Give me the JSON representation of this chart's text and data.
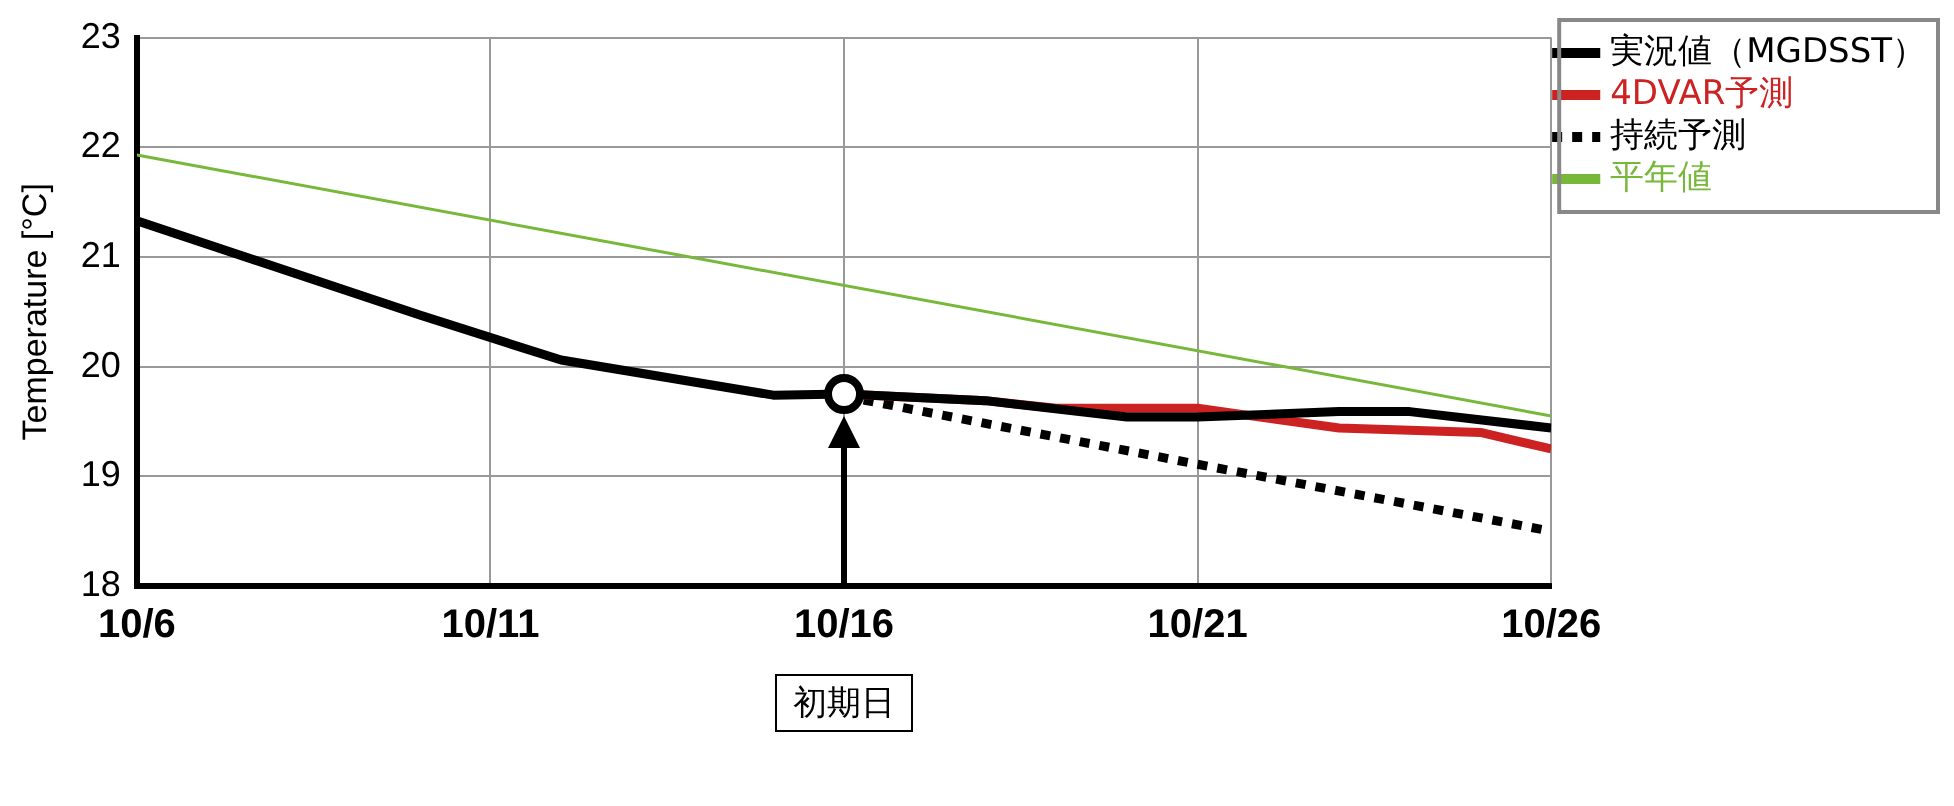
{
  "chart_data": {
    "type": "line",
    "ylabel": "Temperature [°C]",
    "xlim": [
      "--10-06",
      "--10-26"
    ],
    "xticks": [
      {
        "value": "--10-06",
        "label": "10/6"
      },
      {
        "value": "--10-11",
        "label": "10/11"
      },
      {
        "value": "--10-16",
        "label": "10/16"
      },
      {
        "value": "--10-21",
        "label": "10/21"
      },
      {
        "value": "--10-26",
        "label": "10/26"
      }
    ],
    "ylim": [
      18,
      23
    ],
    "yticks": [
      18,
      19,
      20,
      21,
      22,
      23
    ],
    "grid": true,
    "legend": "top right",
    "marker": "none",
    "series": [
      {
        "name": "実況値（MGDSST）",
        "color": "#000000",
        "line_style": "solid",
        "x": [
          "--10-06",
          "--10-10",
          "--10-12",
          "--10-15",
          "--10-16",
          "--10-18",
          "--10-20",
          "--10-21",
          "--10-23",
          "--10-24",
          "--10-26"
        ],
        "values": [
          21.33,
          20.47,
          20.06,
          19.74,
          19.75,
          19.69,
          19.54,
          19.54,
          19.59,
          19.59,
          19.44
        ]
      },
      {
        "name": "4DVAR予測",
        "color": "#cc2222",
        "line_style": "solid",
        "x": [
          "--10-16",
          "--10-18",
          "--10-19",
          "--10-21",
          "--10-23",
          "--10-25",
          "--10-26"
        ],
        "values": [
          19.75,
          19.69,
          19.62,
          19.62,
          19.44,
          19.4,
          19.25
        ]
      },
      {
        "name": "持続予測",
        "color": "#000000",
        "line_style": "dotted",
        "x": [
          "--10-16",
          "--10-21",
          "--10-26"
        ],
        "values": [
          19.73,
          19.11,
          18.5
        ]
      },
      {
        "name": "平年値",
        "color": "#77b83a",
        "line_style": "solid",
        "x": [
          "--10-06",
          "--10-26"
        ],
        "values": [
          21.93,
          19.55
        ]
      },
      {
        "type": "scatter",
        "marker": "circle",
        "color": "#000000",
        "x": [
          "--10-16"
        ],
        "values": [
          19.75
        ]
      }
    ],
    "annotations": [
      "初期日"
    ]
  }
}
